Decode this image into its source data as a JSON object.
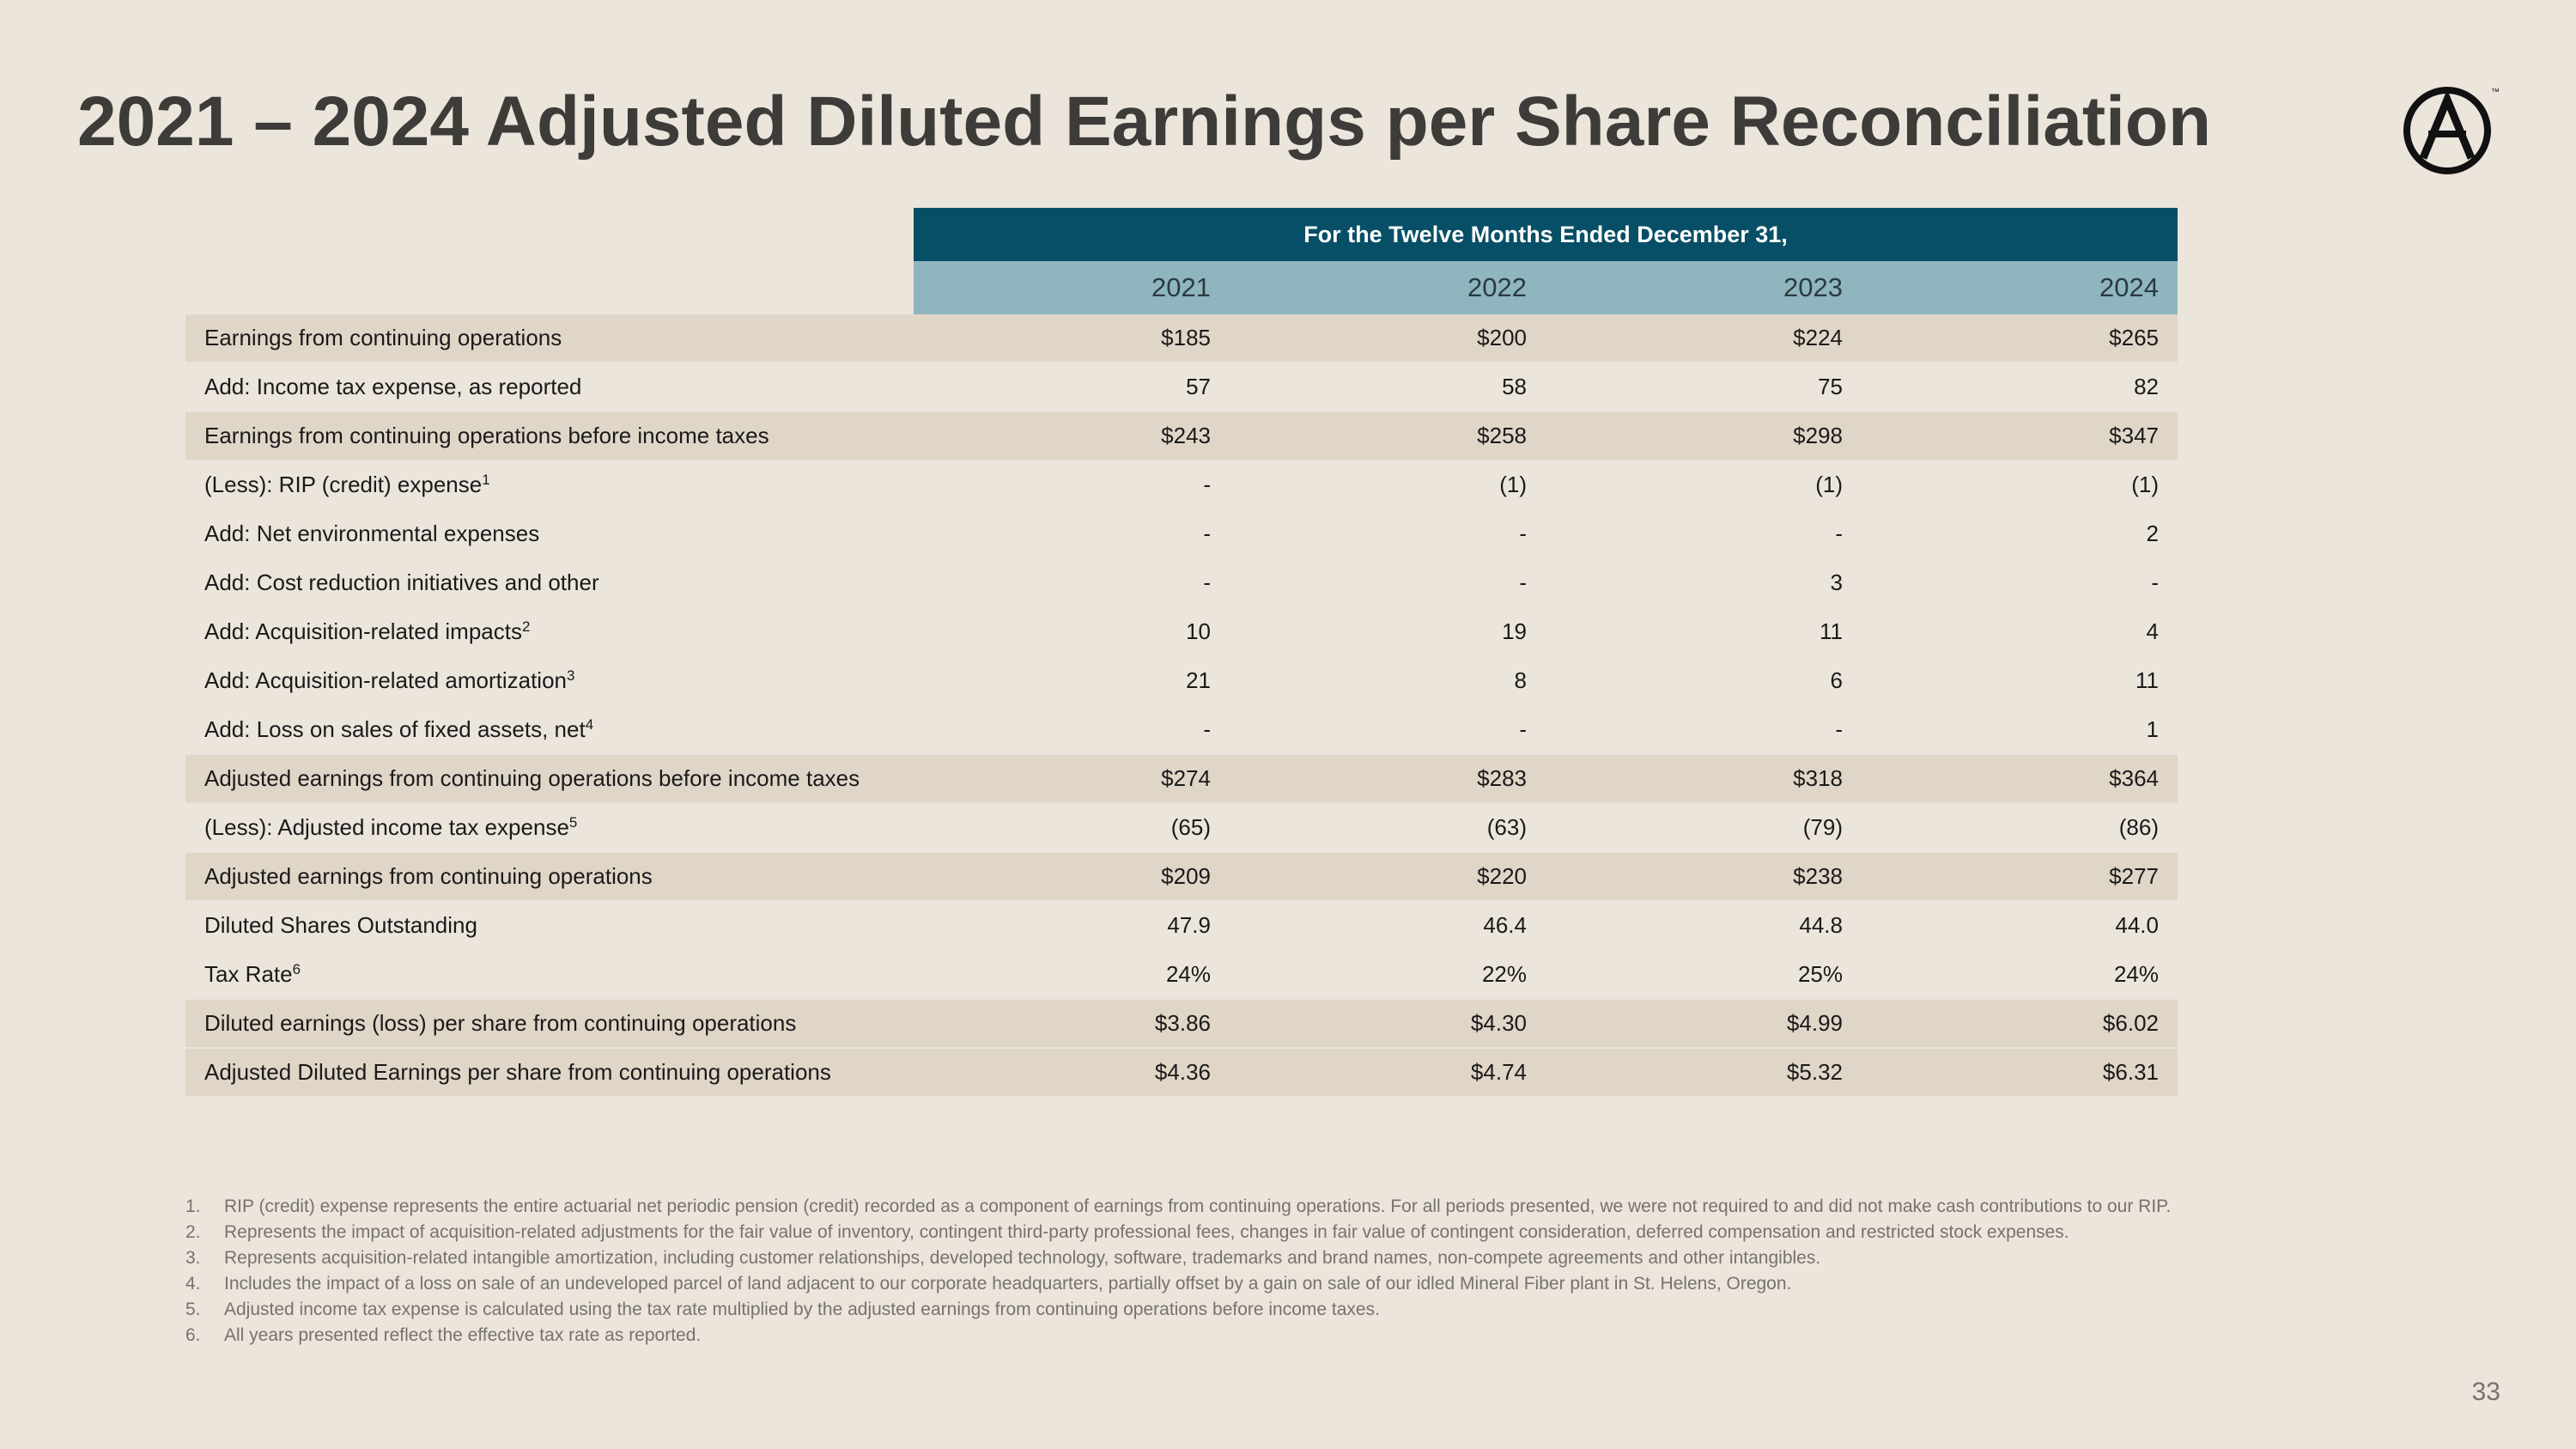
{
  "title": "2021 – 2024 Adjusted Diluted Earnings per Share Reconciliation",
  "logo": {
    "icon": "circled-a-logo-icon",
    "trademark": "™"
  },
  "table": {
    "period_header": "For the Twelve Months Ended December 31,",
    "years": [
      "2021",
      "2022",
      "2023",
      "2024"
    ],
    "rows": [
      {
        "label": "Earnings from continuing operations",
        "sup": "",
        "values": [
          "$185",
          "$200",
          "$224",
          "$265"
        ]
      },
      {
        "label": "Add: Income tax expense, as reported",
        "sup": "",
        "values": [
          "57",
          "58",
          "75",
          "82"
        ]
      },
      {
        "label": "Earnings from continuing operations before income taxes",
        "sup": "",
        "values": [
          "$243",
          "$258",
          "$298",
          "$347"
        ]
      },
      {
        "label": "(Less): RIP (credit) expense",
        "sup": "1",
        "values": [
          "-",
          "(1)",
          "(1)",
          "(1)"
        ]
      },
      {
        "label": "Add: Net environmental expenses",
        "sup": "",
        "values": [
          "-",
          "-",
          "-",
          "2"
        ]
      },
      {
        "label": "Add: Cost reduction initiatives and other",
        "sup": "",
        "values": [
          "-",
          "-",
          "3",
          "-"
        ]
      },
      {
        "label": "Add: Acquisition-related impacts",
        "sup": "2",
        "values": [
          "10",
          "19",
          "11",
          "4"
        ]
      },
      {
        "label": "Add: Acquisition-related amortization",
        "sup": "3",
        "values": [
          "21",
          "8",
          "6",
          "11"
        ]
      },
      {
        "label": "Add: Loss on sales of fixed assets, net",
        "sup": "4",
        "values": [
          "-",
          "-",
          "-",
          "1"
        ]
      },
      {
        "label": "Adjusted earnings from continuing operations before income taxes",
        "sup": "",
        "values": [
          "$274",
          "$283",
          "$318",
          "$364"
        ]
      },
      {
        "label": "(Less): Adjusted income tax expense",
        "sup": "5",
        "values": [
          "(65)",
          "(63)",
          "(79)",
          "(86)"
        ]
      },
      {
        "label": "Adjusted earnings from continuing operations",
        "sup": "",
        "values": [
          "$209",
          "$220",
          "$238",
          "$277"
        ]
      },
      {
        "label": "Diluted Shares Outstanding",
        "sup": "",
        "values": [
          "47.9",
          "46.4",
          "44.8",
          "44.0"
        ]
      },
      {
        "label": "Tax Rate",
        "sup": "6",
        "values": [
          "24%",
          "22%",
          "25%",
          "24%"
        ]
      },
      {
        "label": "Diluted earnings (loss) per share from continuing operations",
        "sup": "",
        "values": [
          "$3.86",
          "$4.30",
          "$4.99",
          "$6.02"
        ]
      },
      {
        "label": "Adjusted Diluted Earnings per share from continuing operations",
        "sup": "",
        "values": [
          "$4.36",
          "$4.74",
          "$5.32",
          "$6.31"
        ]
      }
    ]
  },
  "footnotes": [
    {
      "num": "1.",
      "text": "RIP (credit) expense represents the entire actuarial net periodic pension (credit) recorded as a component of earnings from continuing operations. For all periods presented, we were not required to and did not make cash contributions to our RIP."
    },
    {
      "num": "2.",
      "text": "Represents the impact of acquisition-related adjustments for the fair value of inventory, contingent third-party professional fees, changes in fair value of contingent consideration, deferred compensation and restricted stock expenses."
    },
    {
      "num": "3.",
      "text": "Represents acquisition-related intangible amortization, including customer relationships, developed technology, software, trademarks and brand names, non-compete agreements and other intangibles."
    },
    {
      "num": "4.",
      "text": "Includes the impact of a loss on sale of an undeveloped parcel of land adjacent to our corporate headquarters, partially offset by a gain on sale of our idled Mineral Fiber plant in St. Helens, Oregon."
    },
    {
      "num": "5.",
      "text": "Adjusted income tax expense is calculated using the tax rate multiplied by the adjusted earnings from continuing operations before income taxes."
    },
    {
      "num": "6.",
      "text": "All years presented reflect the effective tax rate as reported."
    }
  ],
  "page_number": "33"
}
